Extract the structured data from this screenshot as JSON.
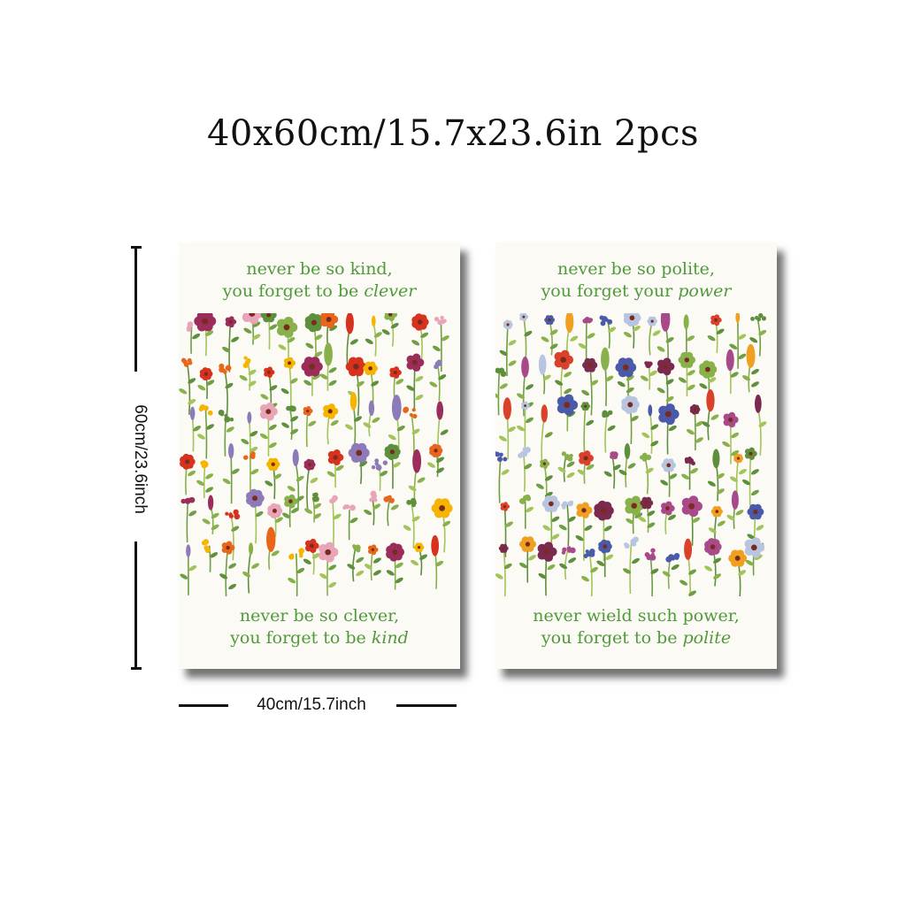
{
  "heading": "40x60cm/15.7x23.6in 2pcs",
  "dimensions": {
    "width_label": "40cm/15.7inch",
    "height_label": "60cm/23.6inch"
  },
  "posters": [
    {
      "top_line1": "never be so kind,",
      "top_line2_prefix": "you forget to be ",
      "top_line2_emph": "clever",
      "bottom_line1": "never be so clever,",
      "bottom_line2_prefix": "you forget to be ",
      "bottom_line2_emph": "kind"
    },
    {
      "top_line1": "never be so polite,",
      "top_line2_prefix": "you forget your ",
      "top_line2_emph": "power",
      "bottom_line1": "never wield such power,",
      "bottom_line2_prefix": "you forget to be ",
      "bottom_line2_emph": "polite"
    }
  ],
  "colors": {
    "quote_green": "#4f9a3a",
    "poster_bg": "#fcfaf5",
    "palette_left": [
      "#f5b400",
      "#e8651a",
      "#d6321e",
      "#9b2d5a",
      "#e8a5b8",
      "#8c7bb8",
      "#88b04b",
      "#5d8f3c"
    ],
    "palette_right": [
      "#7a2a4e",
      "#a84a8a",
      "#88b04b",
      "#5d8f3c",
      "#f0a020",
      "#d9412a",
      "#4a5aa8",
      "#b8c4e0"
    ]
  }
}
